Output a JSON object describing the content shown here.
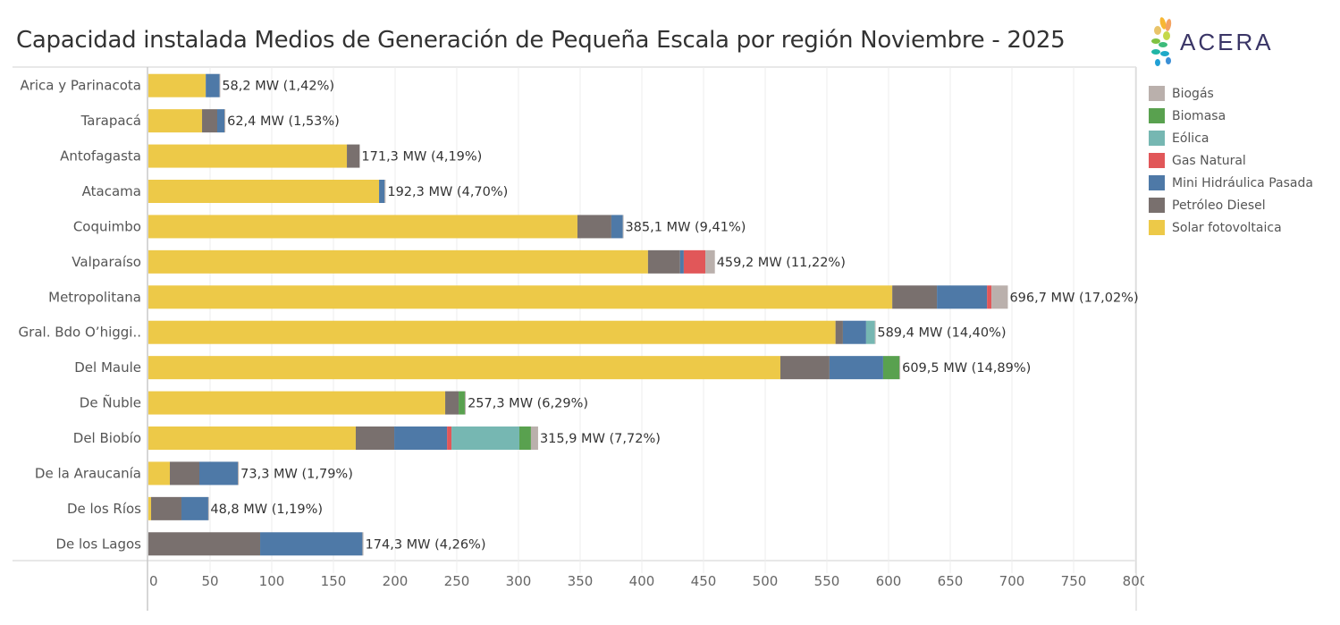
{
  "header": {
    "title": "Capacidad instalada Medios de Generación de Pequeña Escala por región Noviembre - 2025",
    "logo_text": "ACERA"
  },
  "legend": {
    "items": [
      {
        "label": "Biogás",
        "color": "#bab0ac"
      },
      {
        "label": "Biomasa",
        "color": "#59a14f"
      },
      {
        "label": "Eólica",
        "color": "#76b7b2"
      },
      {
        "label": "Gas Natural",
        "color": "#e15759"
      },
      {
        "label": "Mini Hidráulica Pasada",
        "color": "#4e79a7"
      },
      {
        "label": "Petróleo Diesel",
        "color": "#79706e"
      },
      {
        "label": "Solar fotovoltaica",
        "color": "#edc948"
      }
    ]
  },
  "chart_data": {
    "type": "bar",
    "orientation": "horizontal",
    "stacked": true,
    "title": "Capacidad instalada Medios de Generación de Pequeña Escala por región Noviembre - 2025",
    "xlabel": "",
    "ylabel": "",
    "xlim": [
      0,
      800
    ],
    "xticks": [
      0,
      50,
      100,
      150,
      200,
      250,
      300,
      350,
      400,
      450,
      500,
      550,
      600,
      650,
      700,
      750,
      800
    ],
    "grid": true,
    "legend_position": "right",
    "stack_order": [
      "Solar fotovoltaica",
      "Petróleo Diesel",
      "Mini Hidráulica Pasada",
      "Gas Natural",
      "Eólica",
      "Biomasa",
      "Biogás"
    ],
    "colors": {
      "Solar fotovoltaica": "#edc948",
      "Petróleo Diesel": "#79706e",
      "Mini Hidráulica Pasada": "#4e79a7",
      "Gas Natural": "#e15759",
      "Eólica": "#76b7b2",
      "Biomasa": "#59a14f",
      "Biogás": "#bab0ac"
    },
    "categories": [
      "Arica y Parinacota",
      "Tarapacá",
      "Antofagasta",
      "Atacama",
      "Coquimbo",
      "Valparaíso",
      "Metropolitana",
      "Gral. Bdo O’higgi..",
      "Del Maule",
      "De Ñuble",
      "Del Biobío",
      "De la Araucanía",
      "De los Ríos",
      "De los Lagos"
    ],
    "series": [
      {
        "name": "Solar fotovoltaica",
        "values": [
          46.5,
          43.5,
          160.9,
          187.0,
          347.8,
          405.0,
          603.0,
          557.0,
          512.3,
          240.6,
          168.1,
          17.4,
          2.2,
          0
        ]
      },
      {
        "name": "Petróleo Diesel",
        "values": [
          0,
          12.3,
          10.4,
          0,
          27.5,
          26.0,
          36.2,
          6.0,
          39.8,
          10.9,
          31.2,
          23.9,
          24.6,
          90.6
        ]
      },
      {
        "name": "Mini Hidráulica Pasada",
        "values": [
          11.2,
          5.8,
          0,
          4.5,
          9.3,
          3.0,
          40.6,
          18.8,
          43.5,
          0,
          42.8,
          31.2,
          21.7,
          82.9
        ]
      },
      {
        "name": "Gas Natural",
        "values": [
          0,
          0,
          0,
          0,
          0,
          17.5,
          3.6,
          0,
          0,
          0,
          3.6,
          0,
          0,
          0
        ]
      },
      {
        "name": "Eólica",
        "values": [
          0,
          0,
          0,
          0,
          0,
          0,
          0,
          7.1,
          0,
          0,
          55.0,
          0,
          0,
          0
        ]
      },
      {
        "name": "Biomasa",
        "values": [
          0,
          0,
          0,
          0,
          0,
          0,
          0,
          0,
          13.2,
          5.0,
          9.4,
          0,
          0,
          0
        ]
      },
      {
        "name": "Biogás",
        "values": [
          0.5,
          0.8,
          0,
          0.8,
          0.5,
          7.7,
          13.3,
          0.5,
          0.7,
          0.8,
          5.8,
          0.8,
          0.3,
          0.8
        ]
      }
    ],
    "totals": [
      58.2,
      62.4,
      171.3,
      192.3,
      385.1,
      459.2,
      696.7,
      589.4,
      609.5,
      257.3,
      315.9,
      73.3,
      48.8,
      174.3
    ],
    "data_labels": [
      "58,2 MW (1,42%)",
      "62,4 MW (1,53%)",
      "171,3 MW (4,19%)",
      "192,3 MW (4,70%)",
      "385,1 MW (9,41%)",
      "459,2 MW (11,22%)",
      "696,7 MW (17,02%)",
      "589,4 MW (14,40%)",
      "609,5 MW (14,89%)",
      "257,3 MW (6,29%)",
      "315,9 MW (7,72%)",
      "73,3 MW (1,79%)",
      "48,8 MW (1,19%)",
      "174,3 MW (4,26%)"
    ]
  }
}
